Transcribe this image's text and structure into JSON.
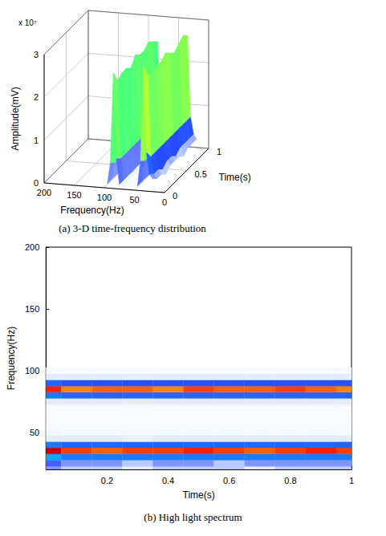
{
  "chart_data": [
    {
      "type": "surface3d",
      "title": "(a) 3-D time-frequency distribution",
      "xlabel": "Frequency(Hz)",
      "ylabel": "Time(s)",
      "zlabel": "Amplitude(mV)",
      "zlabel_multiplier": "x 10⁷",
      "x": [
        20,
        25,
        30,
        35,
        40,
        45,
        50,
        55,
        60,
        65,
        70,
        75,
        80,
        85,
        90,
        95,
        100
      ],
      "y": [
        0,
        0.1,
        0.2,
        0.3,
        0.4,
        0.5,
        0.6,
        0.7,
        0.8,
        0.9,
        1
      ],
      "z": [
        [
          3000000.0,
          4000000.0,
          9000000.0,
          29000000.0,
          7000000.0,
          1000000.0,
          500000.0,
          300000.0,
          200000.0,
          200000.0,
          300000.0,
          1000000.0,
          7000000.0,
          27000000.0,
          6000000.0,
          1000000.0,
          300000.0
        ],
        [
          2000000.0,
          3000000.0,
          7000000.0,
          26000000.0,
          6000000.0,
          1000000.0,
          400000.0,
          300000.0,
          200000.0,
          200000.0,
          300000.0,
          1000000.0,
          6000000.0,
          24000000.0,
          5000000.0,
          1000000.0,
          300000.0
        ],
        [
          2000000.0,
          3000000.0,
          7000000.0,
          25000000.0,
          6000000.0,
          1000000.0,
          400000.0,
          300000.0,
          200000.0,
          200000.0,
          300000.0,
          1000000.0,
          6000000.0,
          25000000.0,
          5000000.0,
          1000000.0,
          300000.0
        ],
        [
          1000000.0,
          2000000.0,
          7000000.0,
          26000000.0,
          6000000.0,
          800000.0,
          400000.0,
          200000.0,
          200000.0,
          200000.0,
          300000.0,
          900000.0,
          6000000.0,
          25000000.0,
          5000000.0,
          900000.0,
          300000.0
        ],
        [
          2000000.0,
          3000000.0,
          7000000.0,
          26000000.0,
          6000000.0,
          1000000.0,
          400000.0,
          300000.0,
          200000.0,
          200000.0,
          300000.0,
          1000000.0,
          6000000.0,
          24000000.0,
          5000000.0,
          1000000.0,
          300000.0
        ],
        [
          2000000.0,
          3000000.0,
          7000000.0,
          27000000.0,
          6000000.0,
          1000000.0,
          400000.0,
          300000.0,
          200000.0,
          200000.0,
          300000.0,
          1000000.0,
          6000000.0,
          26000000.0,
          5000000.0,
          1000000.0,
          300000.0
        ],
        [
          2000000.0,
          2000000.0,
          7000000.0,
          26000000.0,
          6000000.0,
          1000000.0,
          400000.0,
          300000.0,
          200000.0,
          200000.0,
          300000.0,
          1000000.0,
          6000000.0,
          25000000.0,
          5000000.0,
          1000000.0,
          300000.0
        ],
        [
          1000000.0,
          3000000.0,
          7000000.0,
          25000000.0,
          6000000.0,
          1000000.0,
          400000.0,
          300000.0,
          200000.0,
          200000.0,
          300000.0,
          1000000.0,
          6000000.0,
          25000000.0,
          5000000.0,
          1000000.0,
          300000.0
        ],
        [
          2000000.0,
          3000000.0,
          7000000.0,
          26000000.0,
          6000000.0,
          1000000.0,
          400000.0,
          300000.0,
          200000.0,
          200000.0,
          300000.0,
          1000000.0,
          6000000.0,
          26000000.0,
          5000000.0,
          1000000.0,
          300000.0
        ],
        [
          2000000.0,
          3000000.0,
          7000000.0,
          27000000.0,
          6000000.0,
          1000000.0,
          400000.0,
          300000.0,
          200000.0,
          200000.0,
          300000.0,
          1000000.0,
          6000000.0,
          25000000.0,
          5000000.0,
          1000000.0,
          300000.0
        ],
        [
          2000000.0,
          3000000.0,
          7000000.0,
          26000000.0,
          6000000.0,
          1000000.0,
          400000.0,
          300000.0,
          200000.0,
          200000.0,
          300000.0,
          1000000.0,
          6000000.0,
          24000000.0,
          5000000.0,
          1000000.0,
          300000.0
        ]
      ],
      "xlim": [
        0,
        200
      ],
      "xticks": [
        0,
        50,
        100,
        150,
        200
      ],
      "ylim": [
        0,
        1
      ],
      "yticks": [
        0,
        0.5,
        1
      ],
      "zlim": [
        0,
        30000000.0
      ],
      "zticks": [
        0,
        {
          "value": 10000000.0,
          "label": "1"
        },
        {
          "value": 20000000.0,
          "label": "2"
        },
        {
          "value": 30000000.0,
          "label": "3"
        }
      ],
      "grid": true
    },
    {
      "type": "heatmap",
      "title": "(b) High light spectrum",
      "xlabel": "Time(s)",
      "ylabel": "Frequency(Hz)",
      "x": [
        0,
        0.1,
        0.2,
        0.3,
        0.4,
        0.5,
        0.6,
        0.7,
        0.8,
        0.9,
        1
      ],
      "y": [
        20,
        25,
        30,
        35,
        40,
        45,
        50,
        55,
        60,
        65,
        70,
        75,
        80,
        85,
        90,
        95,
        100
      ],
      "values": [
        [
          3000000.0,
          4000000.0,
          9000000.0,
          29000000.0,
          7000000.0,
          1000000.0,
          500000.0,
          300000.0,
          200000.0,
          200000.0,
          300000.0,
          1000000.0,
          7000000.0,
          27000000.0,
          6000000.0,
          1000000.0,
          300000.0
        ],
        [
          2000000.0,
          3000000.0,
          7000000.0,
          26000000.0,
          6000000.0,
          1000000.0,
          400000.0,
          300000.0,
          200000.0,
          200000.0,
          300000.0,
          1000000.0,
          6000000.0,
          24000000.0,
          5000000.0,
          1000000.0,
          300000.0
        ],
        [
          2000000.0,
          3000000.0,
          7000000.0,
          25000000.0,
          6000000.0,
          1000000.0,
          400000.0,
          300000.0,
          200000.0,
          200000.0,
          300000.0,
          1000000.0,
          6000000.0,
          25000000.0,
          5000000.0,
          1000000.0,
          300000.0
        ],
        [
          1000000.0,
          2000000.0,
          7000000.0,
          26000000.0,
          6000000.0,
          800000.0,
          400000.0,
          200000.0,
          200000.0,
          200000.0,
          300000.0,
          900000.0,
          6000000.0,
          25000000.0,
          5000000.0,
          900000.0,
          300000.0
        ],
        [
          2000000.0,
          3000000.0,
          7000000.0,
          26000000.0,
          6000000.0,
          1000000.0,
          400000.0,
          300000.0,
          200000.0,
          200000.0,
          300000.0,
          1000000.0,
          6000000.0,
          24000000.0,
          5000000.0,
          1000000.0,
          300000.0
        ],
        [
          2000000.0,
          3000000.0,
          7000000.0,
          27000000.0,
          6000000.0,
          1000000.0,
          400000.0,
          300000.0,
          200000.0,
          200000.0,
          300000.0,
          1000000.0,
          6000000.0,
          26000000.0,
          5000000.0,
          1000000.0,
          300000.0
        ],
        [
          2000000.0,
          2000000.0,
          7000000.0,
          26000000.0,
          6000000.0,
          1000000.0,
          400000.0,
          300000.0,
          200000.0,
          200000.0,
          300000.0,
          1000000.0,
          6000000.0,
          25000000.0,
          5000000.0,
          1000000.0,
          300000.0
        ],
        [
          1000000.0,
          3000000.0,
          7000000.0,
          25000000.0,
          6000000.0,
          1000000.0,
          400000.0,
          300000.0,
          200000.0,
          200000.0,
          300000.0,
          1000000.0,
          6000000.0,
          25000000.0,
          5000000.0,
          1000000.0,
          300000.0
        ],
        [
          2000000.0,
          3000000.0,
          7000000.0,
          26000000.0,
          6000000.0,
          1000000.0,
          400000.0,
          300000.0,
          200000.0,
          200000.0,
          300000.0,
          1000000.0,
          6000000.0,
          26000000.0,
          5000000.0,
          1000000.0,
          300000.0
        ],
        [
          2000000.0,
          3000000.0,
          7000000.0,
          27000000.0,
          6000000.0,
          1000000.0,
          400000.0,
          300000.0,
          200000.0,
          200000.0,
          300000.0,
          1000000.0,
          6000000.0,
          25000000.0,
          5000000.0,
          1000000.0,
          300000.0
        ],
        [
          2000000.0,
          3000000.0,
          7000000.0,
          26000000.0,
          6000000.0,
          1000000.0,
          400000.0,
          300000.0,
          200000.0,
          200000.0,
          300000.0,
          1000000.0,
          6000000.0,
          24000000.0,
          5000000.0,
          1000000.0,
          300000.0
        ]
      ],
      "xlim": [
        0,
        1
      ],
      "xticks": [
        0.2,
        0.4,
        0.6,
        0.8,
        1
      ],
      "ylim": [
        20,
        200
      ],
      "yticks": [
        50,
        100,
        150,
        200
      ],
      "color_range": [
        0,
        30000000.0
      ],
      "grid": false
    }
  ]
}
